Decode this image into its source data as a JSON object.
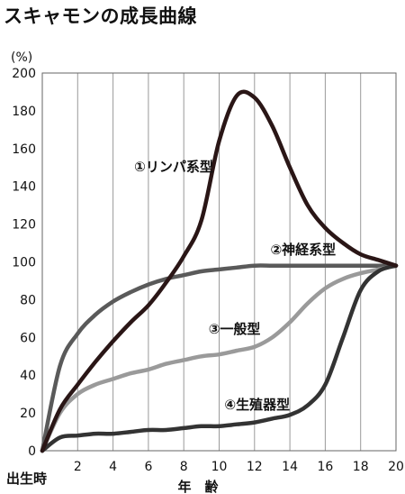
{
  "chart_data": {
    "type": "line",
    "title": "スキャモンの成長曲線",
    "ylabel": "(%)",
    "xlabel": "年　齢",
    "x_origin_label": "出生時",
    "xlim": [
      0,
      20
    ],
    "ylim": [
      0,
      200
    ],
    "x_ticks": [
      2,
      4,
      6,
      8,
      10,
      12,
      14,
      16,
      18,
      20
    ],
    "y_ticks": [
      0,
      20,
      40,
      60,
      80,
      100,
      120,
      140,
      160,
      180,
      200
    ],
    "grid": "vertical",
    "series": [
      {
        "name": "①リンパ系型",
        "color": "#2a1616",
        "x": [
          0,
          1,
          2,
          3,
          4,
          5,
          6,
          7,
          8,
          9,
          10,
          11,
          12,
          13,
          14,
          15,
          16,
          17,
          18,
          19,
          20
        ],
        "y": [
          0,
          22,
          35,
          47,
          58,
          68,
          77,
          89,
          103,
          122,
          164,
          188,
          187,
          172,
          150,
          130,
          118,
          110,
          104,
          101,
          98
        ]
      },
      {
        "name": "②神経系型",
        "color": "#5a5a5a",
        "x": [
          0,
          1,
          2,
          3,
          4,
          5,
          6,
          7,
          8,
          9,
          10,
          11,
          12,
          13,
          14,
          15,
          16,
          17,
          18,
          19,
          20
        ],
        "y": [
          0,
          45,
          62,
          72,
          79,
          84,
          88,
          91,
          93,
          95,
          96,
          97,
          98,
          98,
          98,
          98,
          98,
          98,
          98,
          98,
          98
        ]
      },
      {
        "name": "③一般型",
        "color": "#9a9a9a",
        "x": [
          0,
          1,
          2,
          3,
          4,
          5,
          6,
          7,
          8,
          9,
          10,
          11,
          12,
          13,
          14,
          15,
          16,
          17,
          18,
          19,
          20
        ],
        "y": [
          0,
          20,
          30,
          35,
          38,
          41,
          43,
          46,
          48,
          50,
          51,
          53,
          55,
          60,
          68,
          78,
          86,
          91,
          94,
          96,
          98
        ]
      },
      {
        "name": "④生殖器型",
        "color": "#333333",
        "x": [
          0,
          1,
          2,
          3,
          4,
          5,
          6,
          7,
          8,
          9,
          10,
          11,
          12,
          13,
          14,
          15,
          16,
          17,
          18,
          19,
          20
        ],
        "y": [
          0,
          7,
          8,
          9,
          9,
          10,
          11,
          11,
          12,
          13,
          13,
          14,
          15,
          17,
          19,
          24,
          35,
          60,
          85,
          95,
          98
        ]
      }
    ],
    "annotations": [
      {
        "text": "①リンパ系型",
        "x": 5.2,
        "y": 148
      },
      {
        "text": "②神経系型",
        "x": 12.9,
        "y": 104
      },
      {
        "text": "③一般型",
        "x": 9.4,
        "y": 62
      },
      {
        "text": "④生殖器型",
        "x": 10.3,
        "y": 22
      }
    ]
  }
}
